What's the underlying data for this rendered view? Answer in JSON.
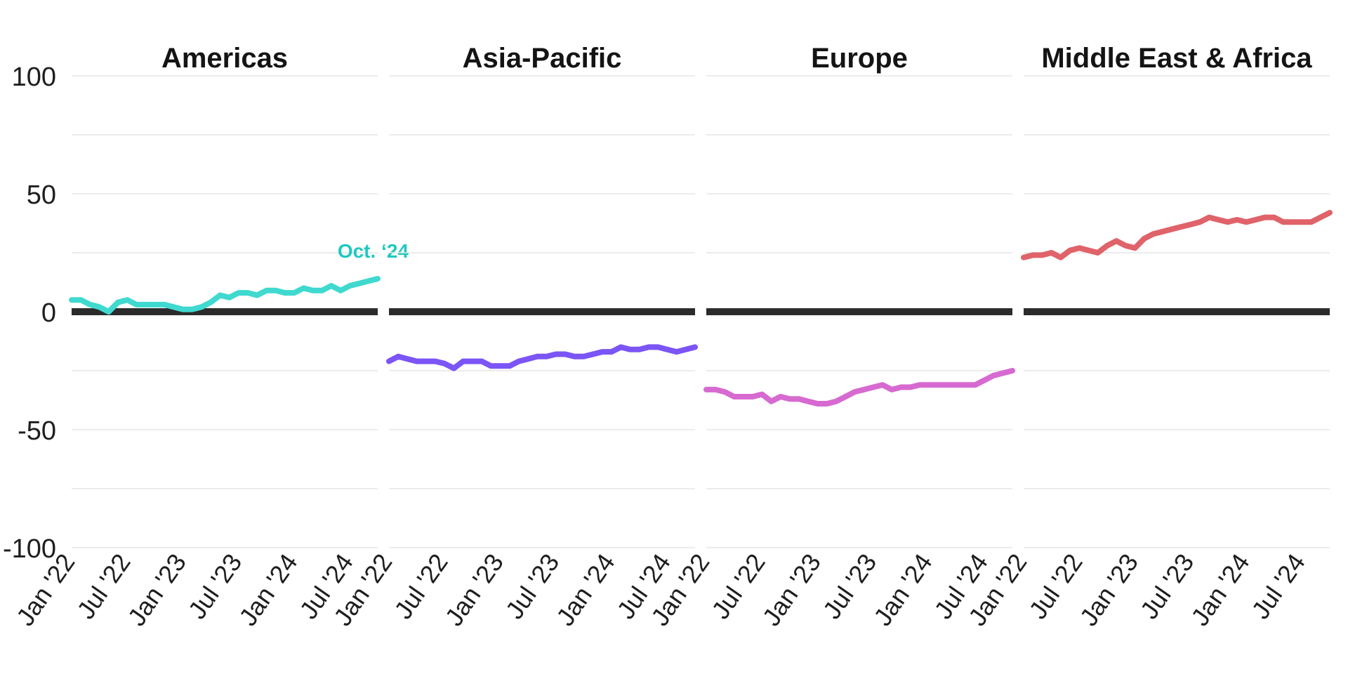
{
  "chart_data": {
    "type": "line",
    "layout": "small-multiples",
    "ylim": [
      -100,
      100
    ],
    "y_ticks": [
      "100",
      "50",
      "0",
      "-50",
      "-100"
    ],
    "y_tick_values": [
      100,
      50,
      0,
      -50,
      -100
    ],
    "grid_values": [
      100,
      75,
      50,
      25,
      -25,
      -50,
      -75,
      -100
    ],
    "grid": true,
    "zero_line": true,
    "x_ticks": [
      "Jan '22",
      "Jul '22",
      "Jan '23",
      "Jul '23",
      "Jan '24",
      "Jul '24"
    ],
    "x_tick_indices": [
      0,
      6,
      12,
      18,
      24,
      30
    ],
    "x": [
      "2022-01",
      "2022-02",
      "2022-03",
      "2022-04",
      "2022-05",
      "2022-06",
      "2022-07",
      "2022-08",
      "2022-09",
      "2022-10",
      "2022-11",
      "2022-12",
      "2023-01",
      "2023-02",
      "2023-03",
      "2023-04",
      "2023-05",
      "2023-06",
      "2023-07",
      "2023-08",
      "2023-09",
      "2023-10",
      "2023-11",
      "2023-12",
      "2024-01",
      "2024-02",
      "2024-03",
      "2024-04",
      "2024-05",
      "2024-06",
      "2024-07",
      "2024-08",
      "2024-09",
      "2024-10"
    ],
    "panels": [
      {
        "title": "Americas",
        "color": "#3fd9cf",
        "annotation": "Oct. ‘24",
        "annotation_color": "#1fc9c0",
        "values": [
          5,
          5,
          3,
          2,
          0,
          4,
          5,
          3,
          3,
          3,
          3,
          2,
          1,
          1,
          2,
          4,
          7,
          6,
          8,
          8,
          7,
          9,
          9,
          8,
          8,
          10,
          9,
          9,
          11,
          9,
          11,
          12,
          13,
          14
        ]
      },
      {
        "title": "Asia-Pacific",
        "color": "#7b55f5",
        "values": [
          -21,
          -19,
          -20,
          -21,
          -21,
          -21,
          -22,
          -24,
          -21,
          -21,
          -21,
          -23,
          -23,
          -23,
          -21,
          -20,
          -19,
          -19,
          -18,
          -18,
          -19,
          -19,
          -18,
          -17,
          -17,
          -15,
          -16,
          -16,
          -15,
          -15,
          -16,
          -17,
          -16,
          -15
        ]
      },
      {
        "title": "Europe",
        "color": "#d76ad0",
        "values": [
          -33,
          -33,
          -34,
          -36,
          -36,
          -36,
          -35,
          -38,
          -36,
          -37,
          -37,
          -38,
          -39,
          -39,
          -38,
          -36,
          -34,
          -33,
          -32,
          -31,
          -33,
          -32,
          -32,
          -31,
          -31,
          -31,
          -31,
          -31,
          -31,
          -31,
          -29,
          -27,
          -26,
          -25
        ]
      },
      {
        "title": "Middle East & Africa",
        "color": "#e0636a",
        "values": [
          23,
          24,
          24,
          25,
          23,
          26,
          27,
          26,
          25,
          28,
          30,
          28,
          27,
          31,
          33,
          34,
          35,
          36,
          37,
          38,
          40,
          39,
          38,
          39,
          38,
          39,
          40,
          40,
          38,
          38,
          38,
          38,
          40,
          42
        ]
      }
    ]
  }
}
